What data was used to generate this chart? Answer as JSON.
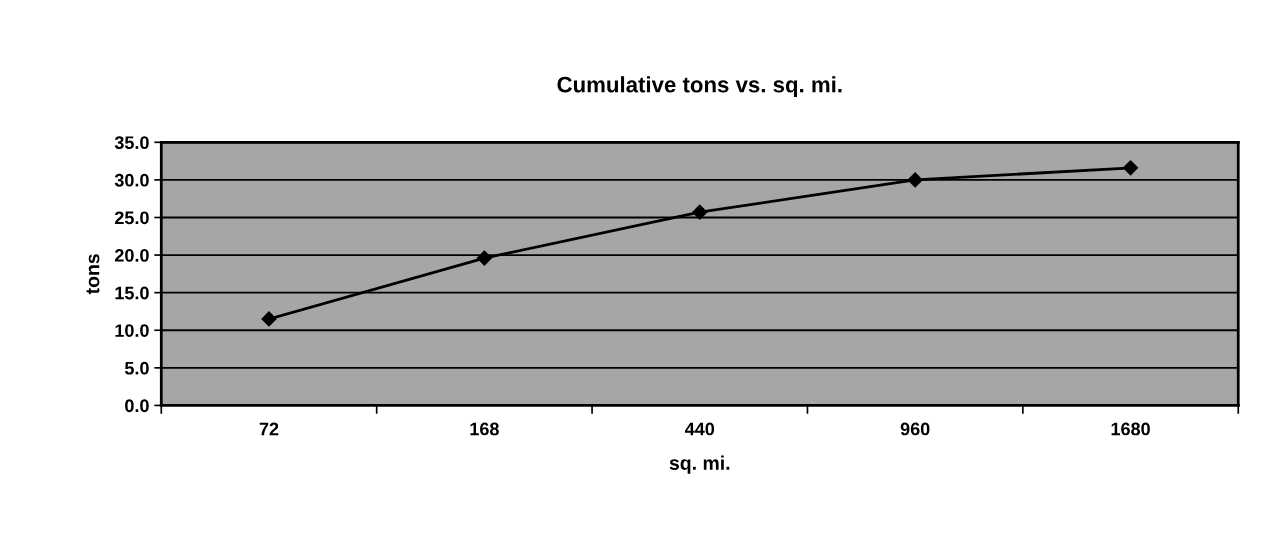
{
  "chart_data": {
    "type": "line",
    "title": "Cumulative tons vs. sq. mi.",
    "xlabel": "sq. mi.",
    "ylabel": "tons",
    "categories": [
      "72",
      "168",
      "440",
      "960",
      "1680"
    ],
    "series": [
      {
        "color": "#000000",
        "values": [
          11.5,
          19.6,
          25.7,
          30.0,
          31.6
        ]
      }
    ],
    "ylim": [
      0,
      35
    ],
    "yticks": [
      {
        "value": 0,
        "label": "0.0"
      },
      {
        "value": 5,
        "label": "5.0"
      },
      {
        "value": 10,
        "label": "10.0"
      },
      {
        "value": 15,
        "label": "15.0"
      },
      {
        "value": 20,
        "label": "20.0"
      },
      {
        "value": 25,
        "label": "25.0"
      },
      {
        "value": 30,
        "label": "30.0"
      },
      {
        "value": 35,
        "label": "35.0"
      }
    ],
    "grid": "y",
    "marker": "diamond",
    "line_style": "solid",
    "legend": false
  }
}
